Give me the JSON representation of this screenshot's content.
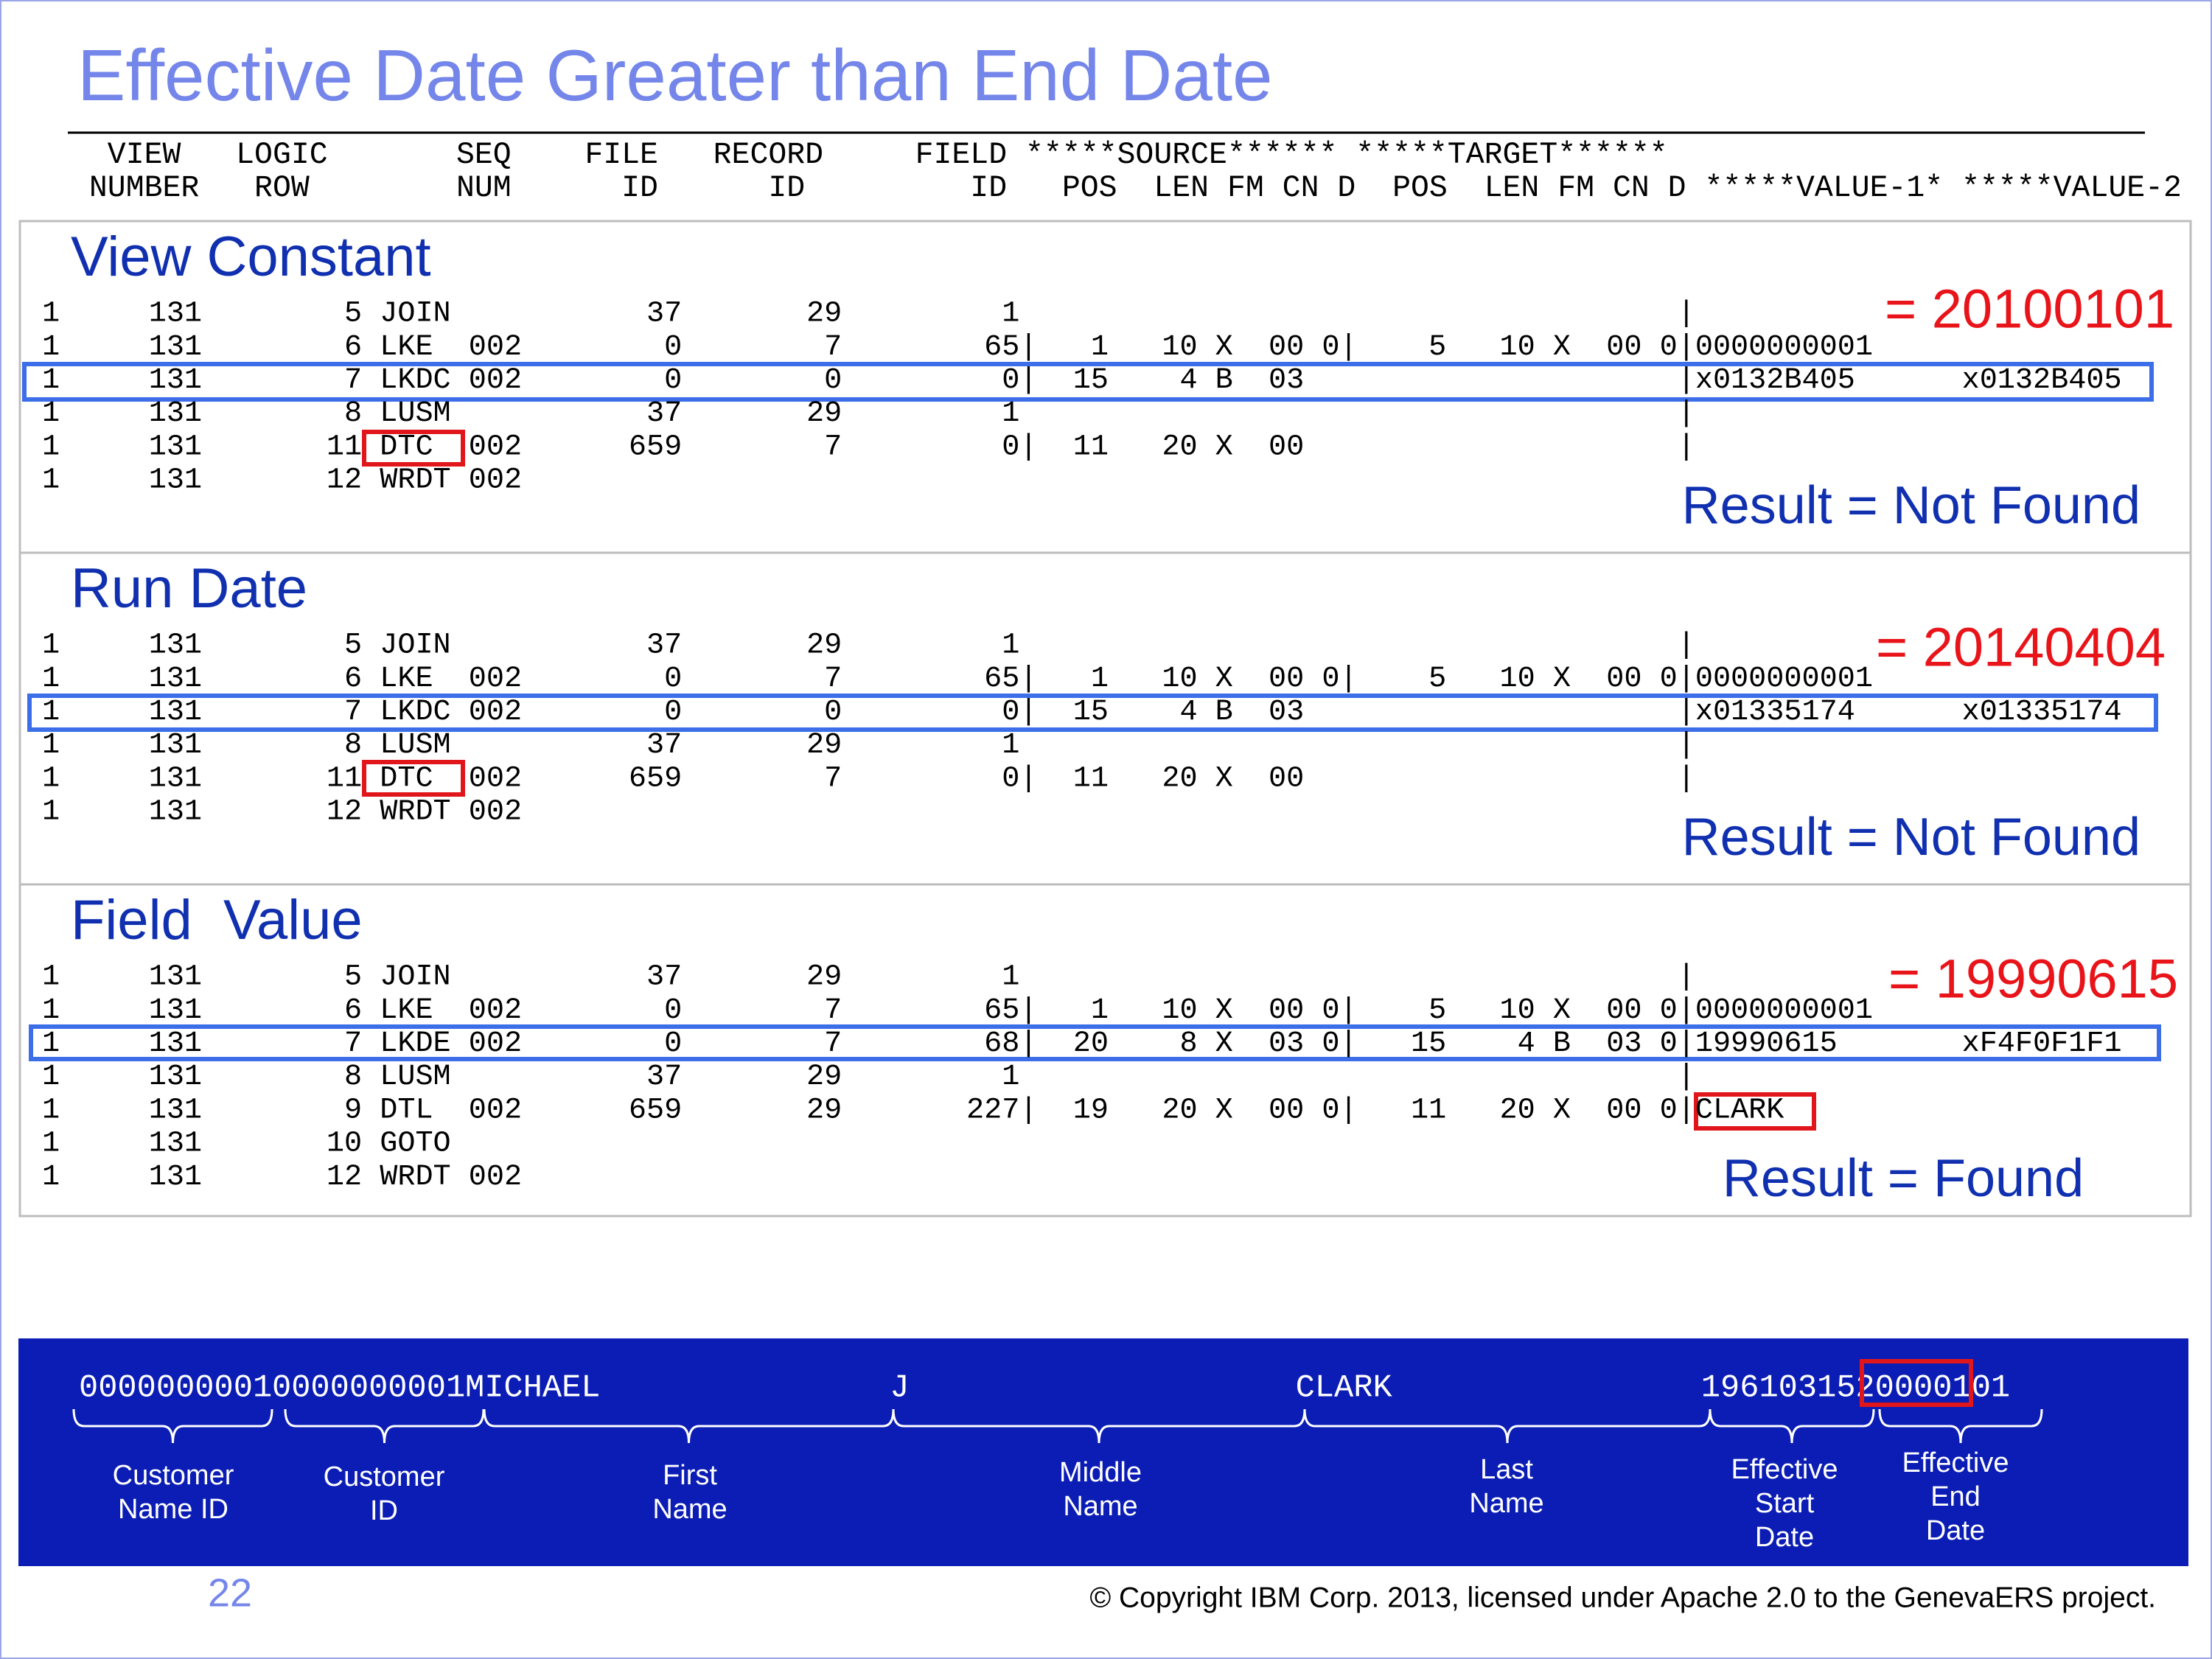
{
  "title": "Effective Date Greater than End Date",
  "header": [
    "  VIEW   LOGIC       SEQ    FILE   RECORD     FIELD *****SOURCE****** *****TARGET******",
    " NUMBER   ROW        NUM      ID      ID         ID   POS  LEN FM CN D  POS  LEN FM CN D *****VALUE-1* *****VALUE-2"
  ],
  "sections": [
    {
      "heading": "View Constant",
      "rows": [
        "1     131        5 JOIN           37       29         1                                     |",
        "1     131        6 LKE  002        0        7        65|   1   10 X  00 0|    5   10 X  00 0|0000000001",
        "1     131        7 LKDC 002        0        0         0|  15    4 B  03                     |x0132B405      x0132B405",
        "1     131        8 LUSM           37       29         1                                     |",
        "1     131       11 DTC  002      659        7         0|  11   20 X  00                     |",
        "1     131       12 WRDT 002"
      ],
      "value": "= 20100101",
      "result": "Result = Not Found"
    },
    {
      "heading": "Run Date",
      "rows": [
        "1     131        5 JOIN           37       29         1                                     |",
        "1     131        6 LKE  002        0        7        65|   1   10 X  00 0|    5   10 X  00 0|0000000001",
        "1     131        7 LKDC 002        0        0         0|  15    4 B  03                     |x01335174      x01335174",
        "1     131        8 LUSM           37       29         1                                     |",
        "1     131       11 DTC  002      659        7         0|  11   20 X  00                     |",
        "1     131       12 WRDT 002"
      ],
      "value": "= 20140404",
      "result": "Result = Not Found"
    },
    {
      "heading": "Field  Value",
      "rows": [
        "1     131        5 JOIN           37       29         1                                     |",
        "1     131        6 LKE  002        0        7        65|   1   10 X  00 0|    5   10 X  00 0|0000000001",
        "1     131        7 LKDE 002        0        7        68|  20    8 X  03 0|   15    4 B  03 0|19990615       xF4F0F1F1",
        "1     131        8 LUSM           37       29         1                                     |",
        "1     131        9 DTL  002      659       29       227|  19   20 X  00 0|   11   20 X  00 0|CLARK",
        "1     131       10 GOTO",
        "1     131       12 WRDT 002"
      ],
      "value": "= 19990615",
      "result": "Result = Found"
    }
  ],
  "record": {
    "fields": [
      {
        "value": "0000000001",
        "label": [
          "Customer",
          "Name ID"
        ]
      },
      {
        "value": "0000000001",
        "label": [
          "Customer",
          "ID"
        ]
      },
      {
        "value": "MICHAEL",
        "label": [
          "First",
          "Name"
        ]
      },
      {
        "value": "J",
        "label": [
          "Middle",
          "Name"
        ]
      },
      {
        "value": "CLARK",
        "label": [
          "Last",
          "Name"
        ]
      },
      {
        "value": "19610315",
        "label": [
          "Effective",
          "Start",
          "Date"
        ]
      },
      {
        "value": "20000101",
        "label": [
          "Effective",
          "End",
          "Date"
        ]
      }
    ]
  },
  "footer": {
    "page": "22",
    "copyright": "© Copyright IBM Corp. 2013, licensed under Apache 2.0 to the GenevaERS project."
  }
}
